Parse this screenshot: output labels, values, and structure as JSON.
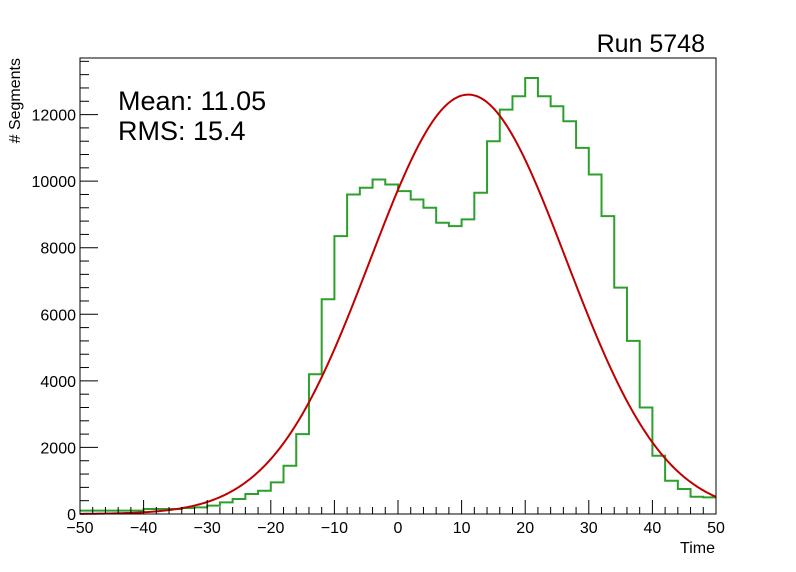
{
  "chart_data": {
    "type": "line",
    "title": "Run 5748",
    "xlabel": "Time",
    "ylabel": "# Segments",
    "xlim": [
      -50,
      50
    ],
    "ylim": [
      0,
      13700
    ],
    "x_ticks": [
      -50,
      -40,
      -30,
      -20,
      -10,
      0,
      10,
      20,
      30,
      40,
      50
    ],
    "x_tick_labels": [
      "−50",
      "−40",
      "−30",
      "−20",
      "−10",
      "0",
      "10",
      "20",
      "30",
      "40",
      "50"
    ],
    "y_ticks": [
      0,
      2000,
      4000,
      6000,
      8000,
      10000,
      12000
    ],
    "y_tick_labels": [
      "0",
      "2000",
      "4000",
      "6000",
      "8000",
      "10000",
      "12000"
    ],
    "grid": false,
    "annotations": {
      "mean_label": "Mean: 11.05",
      "rms_label": "RMS:  15.4"
    },
    "series": [
      {
        "kind": "histogram",
        "color": "#2ca02c",
        "bin_edges": [
          -50,
          -48,
          -46,
          -44,
          -42,
          -40,
          -38,
          -36,
          -34,
          -32,
          -30,
          -28,
          -26,
          -24,
          -22,
          -20,
          -18,
          -16,
          -14,
          -12,
          -10,
          -8,
          -6,
          -4,
          -2,
          0,
          2,
          4,
          6,
          8,
          10,
          12,
          14,
          16,
          18,
          20,
          22,
          24,
          26,
          28,
          30,
          32,
          34,
          36,
          38,
          40,
          42,
          44,
          46,
          48,
          50
        ],
        "values": [
          100,
          100,
          100,
          100,
          100,
          150,
          150,
          150,
          180,
          200,
          250,
          350,
          450,
          600,
          700,
          950,
          1450,
          2400,
          4200,
          6450,
          8350,
          9600,
          9800,
          10050,
          9900,
          9700,
          9450,
          9200,
          8750,
          8650,
          8850,
          9650,
          11200,
          12150,
          12550,
          13100,
          12550,
          12250,
          11800,
          11000,
          10200,
          8950,
          6800,
          5200,
          3200,
          1750,
          1000,
          750,
          520,
          500
        ]
      },
      {
        "kind": "fit",
        "color": "#c00000",
        "function": "gaussian",
        "amplitude": 12600,
        "mean": 11.05,
        "sigma": 15.4
      }
    ]
  }
}
